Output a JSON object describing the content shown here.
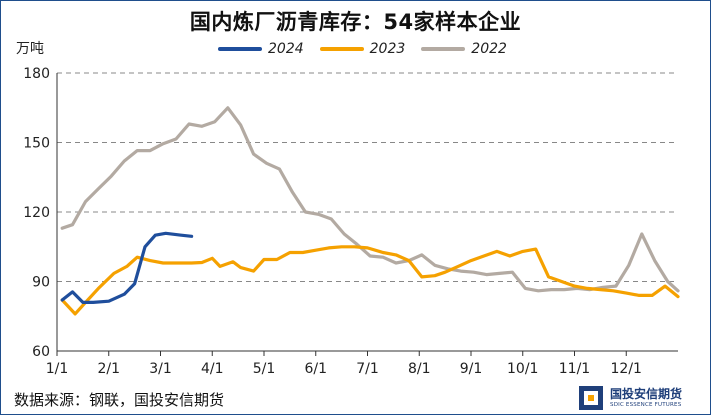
{
  "title": "国内炼厂沥青库存：54家样本企业",
  "unit": "万吨",
  "source": "数据来源：钢联，国投安信期货",
  "brand": {
    "name": "国投安信期货",
    "sub": "SDIC ESSENCE FUTURES"
  },
  "colors": {
    "s2024": "#1f4e9c",
    "s2023": "#f5a100",
    "s2022": "#b3aaa2",
    "grid": "#888888",
    "axis": "#333333"
  },
  "chart_data": {
    "type": "line",
    "title": "国内炼厂沥青库存：54家样本企业",
    "ylabel": "万吨",
    "xlabel": "",
    "ylim": [
      60,
      180
    ],
    "yticks": [
      60,
      90,
      120,
      150,
      180
    ],
    "xticks": [
      "1/1",
      "2/1",
      "3/1",
      "4/1",
      "5/1",
      "6/1",
      "7/1",
      "8/1",
      "9/1",
      "10/1",
      "11/1",
      "12/1"
    ],
    "grid": "horizontal dashed",
    "legend": "top",
    "series": [
      {
        "name": "2024",
        "x": [
          1.1,
          1.3,
          1.5,
          1.7,
          2.0,
          2.3,
          2.5,
          2.7,
          2.9,
          3.1,
          3.4,
          3.6
        ],
        "y": [
          82,
          85.5,
          81,
          81,
          81.5,
          84.5,
          89,
          105,
          110,
          110.8,
          110,
          109.5
        ]
      },
      {
        "name": "2023",
        "x": [
          1.1,
          1.35,
          1.55,
          1.8,
          2.1,
          2.35,
          2.55,
          2.8,
          3.05,
          3.3,
          3.6,
          3.8,
          4.0,
          4.15,
          4.4,
          4.55,
          4.8,
          5.0,
          5.25,
          5.5,
          5.75,
          6.0,
          6.25,
          6.5,
          6.75,
          7.0,
          7.3,
          7.55,
          7.8,
          8.05,
          8.3,
          8.5,
          8.75,
          9.0,
          9.25,
          9.5,
          9.75,
          10.0,
          10.25,
          10.5,
          10.75,
          11.0,
          11.25,
          11.5,
          11.75,
          12.0,
          12.25,
          12.5,
          12.75,
          13.0
        ],
        "y": [
          82,
          76,
          81,
          87,
          93.5,
          96.5,
          100.5,
          99,
          98,
          98,
          98,
          98.2,
          100,
          96.5,
          98.5,
          96,
          94.5,
          99.5,
          99.5,
          102.5,
          102.5,
          103.5,
          104.5,
          105,
          105,
          104.5,
          102.5,
          101.5,
          99,
          92,
          92.5,
          94,
          96.5,
          99,
          101,
          103,
          101,
          103,
          104,
          92,
          90,
          88,
          87,
          86.5,
          86,
          85,
          84,
          84,
          88,
          83.5
        ]
      },
      {
        "name": "2022",
        "x": [
          1.1,
          1.3,
          1.55,
          1.8,
          2.05,
          2.3,
          2.55,
          2.8,
          3.05,
          3.3,
          3.55,
          3.8,
          4.05,
          4.3,
          4.55,
          4.8,
          5.05,
          5.3,
          5.55,
          5.8,
          6.05,
          6.3,
          6.55,
          6.8,
          7.05,
          7.3,
          7.55,
          7.8,
          8.05,
          8.3,
          8.55,
          8.8,
          9.05,
          9.3,
          9.55,
          9.8,
          10.05,
          10.3,
          10.55,
          10.8,
          11.05,
          11.3,
          11.55,
          11.8,
          12.05,
          12.3,
          12.55,
          12.8,
          13.0
        ],
        "y": [
          113,
          114.5,
          124.5,
          130,
          135.5,
          142,
          146.5,
          146.5,
          149.5,
          151.5,
          158,
          157,
          159,
          165,
          157.5,
          145,
          141,
          138.5,
          128.5,
          120,
          119,
          117,
          110.5,
          106,
          101,
          100.5,
          98,
          99,
          101.5,
          97,
          95.5,
          94.5,
          94,
          93,
          93.5,
          94,
          87,
          86,
          86.5,
          86.5,
          87,
          86.5,
          87.5,
          88,
          97,
          110.5,
          99,
          90,
          86
        ]
      }
    ]
  }
}
